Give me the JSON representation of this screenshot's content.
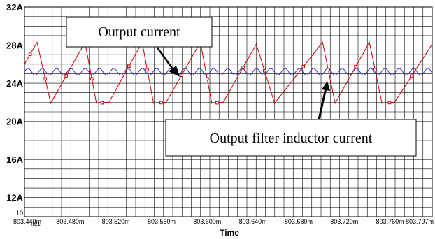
{
  "chart_data": {
    "type": "line",
    "xlabel": "Time",
    "ylabel": "",
    "xlim": [
      803.44,
      803.797
    ],
    "ylim": [
      10,
      32
    ],
    "grid": true,
    "x_tick_labels": [
      "803.440m",
      "803.480m",
      "803.520m",
      "803.560m",
      "803.600m",
      "803.640m",
      "803.680m",
      "803.720m",
      "803.760m",
      "803.797m"
    ],
    "x_tick_values": [
      803.44,
      803.48,
      803.52,
      803.56,
      803.6,
      803.64,
      803.68,
      803.72,
      803.76,
      803.797
    ],
    "y_tick_labels": [
      "32A",
      "28A",
      "24A",
      "20A",
      "16A",
      "12A",
      "10"
    ],
    "y_tick_values": [
      32,
      28,
      24,
      20,
      16,
      12,
      10
    ],
    "legend_label": "I(L1",
    "series": [
      {
        "name": "I(L1",
        "color": "#cc0000",
        "marker": "square",
        "x": [
          803.44,
          803.451,
          803.463,
          803.493,
          803.503,
          803.514,
          803.543,
          803.553,
          803.564,
          803.594,
          803.604,
          803.614,
          803.643,
          803.659,
          803.701,
          803.712,
          803.742,
          803.753,
          803.764,
          803.797
        ],
        "y": [
          26.0,
          28.3,
          21.9,
          28.3,
          21.9,
          22.0,
          28.3,
          21.9,
          22.0,
          28.3,
          21.9,
          22.0,
          28.1,
          21.9,
          28.3,
          21.9,
          28.3,
          21.9,
          22.0,
          28.1
        ]
      },
      {
        "color": "#3333cc",
        "x": [
          803.44,
          803.797
        ],
        "mean": 25.2,
        "amplitude": 0.35,
        "period": 0.0125
      }
    ],
    "annotations": [
      "Output current",
      "Output filter inductor current"
    ]
  }
}
